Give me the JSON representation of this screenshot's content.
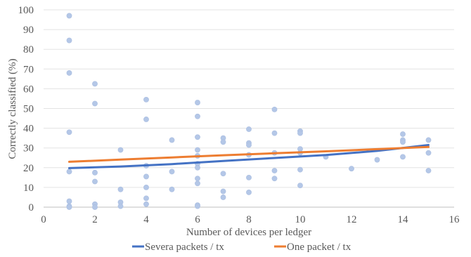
{
  "chart_data": {
    "type": "scatter",
    "title": "",
    "xlabel": "Number of devices per ledger",
    "ylabel": "Correctly classified (%)",
    "xlim": [
      0,
      16
    ],
    "ylim": [
      0,
      100
    ],
    "x_ticks": [
      0,
      2,
      4,
      6,
      8,
      10,
      12,
      14,
      16
    ],
    "y_ticks": [
      0,
      10,
      20,
      30,
      40,
      50,
      60,
      70,
      80,
      90,
      100
    ],
    "grid": "horizontal",
    "legend_position": "bottom",
    "points": {
      "color": "#b4c7e7",
      "xy": [
        [
          1,
          97
        ],
        [
          1,
          84.5
        ],
        [
          1,
          68
        ],
        [
          1,
          38
        ],
        [
          1,
          18
        ],
        [
          1,
          3
        ],
        [
          1,
          0.5
        ],
        [
          1,
          0
        ],
        [
          2,
          62.5
        ],
        [
          2,
          52.5
        ],
        [
          2,
          17.5
        ],
        [
          2,
          13
        ],
        [
          2,
          1.5
        ],
        [
          2,
          0
        ],
        [
          3,
          29
        ],
        [
          3,
          9
        ],
        [
          3,
          2.5
        ],
        [
          3,
          0.5
        ],
        [
          4,
          54.5
        ],
        [
          4,
          44.5
        ],
        [
          4,
          21
        ],
        [
          4,
          15.5
        ],
        [
          4,
          10
        ],
        [
          4,
          4.5
        ],
        [
          4,
          1.5
        ],
        [
          5,
          34
        ],
        [
          5,
          18
        ],
        [
          5,
          9
        ],
        [
          6,
          53
        ],
        [
          6,
          46
        ],
        [
          6,
          35.5
        ],
        [
          6,
          29
        ],
        [
          6,
          26
        ],
        [
          6,
          22
        ],
        [
          6,
          20
        ],
        [
          6,
          14.5
        ],
        [
          6,
          12
        ],
        [
          6,
          1
        ],
        [
          6,
          0.5
        ],
        [
          7,
          35
        ],
        [
          7,
          33
        ],
        [
          7,
          17
        ],
        [
          7,
          8
        ],
        [
          7,
          5
        ],
        [
          8,
          39.5
        ],
        [
          8,
          32.5
        ],
        [
          8,
          31.5
        ],
        [
          8,
          26.5
        ],
        [
          8,
          15
        ],
        [
          8,
          7.5
        ],
        [
          9,
          49.5
        ],
        [
          9,
          37.5
        ],
        [
          9,
          27.5
        ],
        [
          9,
          18.5
        ],
        [
          9,
          14.5
        ],
        [
          10,
          38.5
        ],
        [
          10,
          37.5
        ],
        [
          10,
          29.5
        ],
        [
          10,
          27.5
        ],
        [
          10,
          19
        ],
        [
          10,
          11
        ],
        [
          11,
          25.5
        ],
        [
          12,
          19.5
        ],
        [
          13,
          24
        ],
        [
          14,
          37
        ],
        [
          14,
          34
        ],
        [
          14,
          33
        ],
        [
          14,
          25.5
        ],
        [
          15,
          34
        ],
        [
          15,
          27.5
        ],
        [
          15,
          18.5
        ]
      ]
    },
    "series": [
      {
        "name": "Severa packets / tx",
        "type": "trendline",
        "color": "#4472c4",
        "x": [
          1,
          3,
          5,
          7,
          9,
          11,
          13,
          15
        ],
        "values": [
          19.8,
          20.6,
          21.8,
          23.4,
          24.9,
          26.4,
          28.5,
          31.5
        ]
      },
      {
        "name": "One packet / tx",
        "type": "trendline",
        "color": "#ed7d31",
        "x": [
          1,
          3,
          5,
          7,
          9,
          11,
          13,
          15
        ],
        "values": [
          23,
          24.1,
          25.2,
          26.3,
          27.3,
          28.3,
          29.4,
          30.5
        ]
      }
    ]
  }
}
